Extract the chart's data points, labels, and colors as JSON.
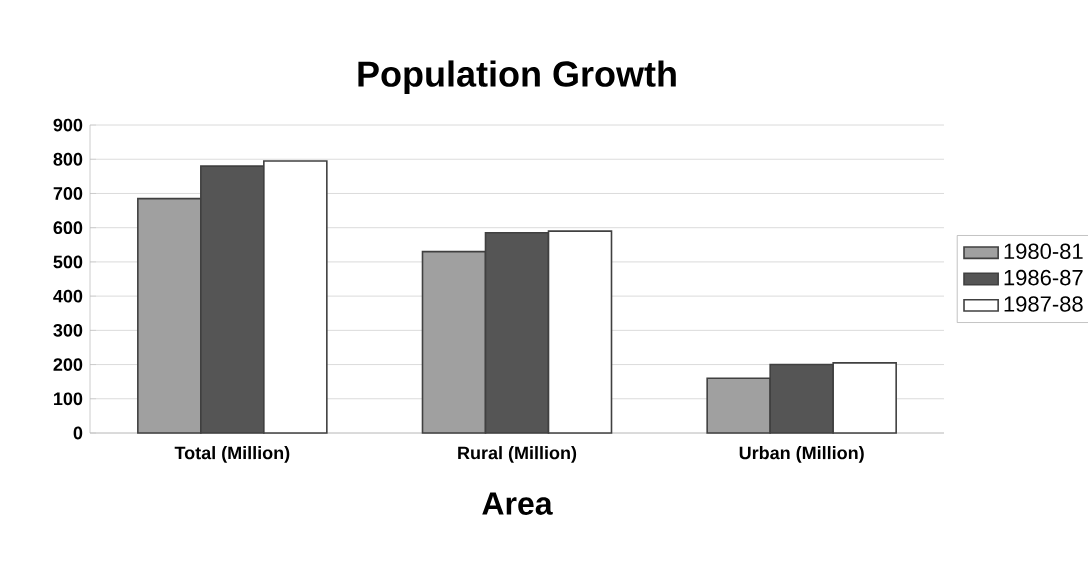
{
  "chart_data": {
    "type": "bar",
    "title": "Population Growth",
    "xlabel": "Area",
    "categories": [
      "Total (Million)",
      "Rural (Million)",
      "Urban (Million)"
    ],
    "series": [
      {
        "name": "1980-81",
        "color": "#a0a0a0",
        "values": [
          685,
          530,
          160
        ]
      },
      {
        "name": "1986-87",
        "color": "#555555",
        "values": [
          780,
          585,
          200
        ]
      },
      {
        "name": "1987-88",
        "color": "#ffffff",
        "values": [
          795,
          590,
          205
        ]
      }
    ],
    "ylim": [
      0,
      900
    ],
    "yticks": [
      0,
      100,
      200,
      300,
      400,
      500,
      600,
      700,
      800,
      900
    ],
    "grid": "y",
    "legend": "right"
  }
}
